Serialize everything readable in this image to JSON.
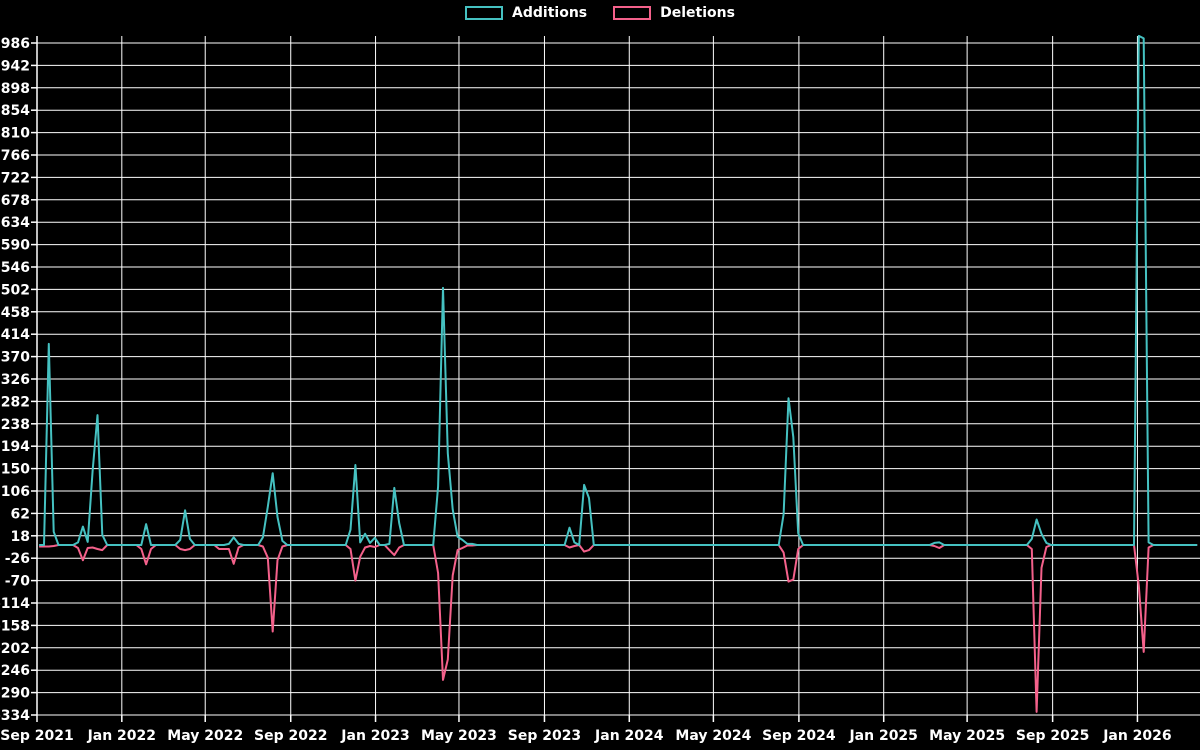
{
  "chart_data": {
    "type": "line",
    "title": "",
    "frequency": "weekly",
    "fill_value": 0,
    "legend": [
      {
        "label": "Additions",
        "color": "#45c1c1"
      },
      {
        "label": "Deletions",
        "color": "#f4618b"
      }
    ],
    "colors": {
      "background": "#000000",
      "grid": "#ffffff",
      "axis": "#ffffff",
      "text": "#ffffff",
      "additions": "#45c1c1",
      "deletions": "#f4618b"
    },
    "y_axis": {
      "tick_step": 44,
      "axis_max": 986,
      "axis_min": -334,
      "ticks": [
        986,
        942,
        898,
        854,
        810,
        766,
        722,
        678,
        634,
        590,
        546,
        502,
        458,
        414,
        370,
        326,
        282,
        238,
        194,
        150,
        106,
        62,
        18,
        -26,
        -70,
        -114,
        -158,
        -202,
        -246,
        -290,
        -334
      ]
    },
    "x_axis": {
      "start": "2021-09-01",
      "end": "2026-04-01",
      "ticks": [
        {
          "date": "2021-09-01",
          "label": "Sep 2021"
        },
        {
          "date": "2022-01-01",
          "label": "Jan 2022"
        },
        {
          "date": "2022-05-01",
          "label": "May 2022"
        },
        {
          "date": "2022-09-01",
          "label": "Sep 2022"
        },
        {
          "date": "2023-01-01",
          "label": "Jan 2023"
        },
        {
          "date": "2023-05-01",
          "label": "May 2023"
        },
        {
          "date": "2023-09-01",
          "label": "Sep 2023"
        },
        {
          "date": "2024-01-01",
          "label": "Jan 2024"
        },
        {
          "date": "2024-05-01",
          "label": "May 2024"
        },
        {
          "date": "2024-09-01",
          "label": "Sep 2024"
        },
        {
          "date": "2025-01-01",
          "label": "Jan 2025"
        },
        {
          "date": "2025-05-01",
          "label": "May 2025"
        },
        {
          "date": "2025-09-01",
          "label": "Sep 2025"
        },
        {
          "date": "2026-01-01",
          "label": "Jan 2026"
        }
      ]
    },
    "series_start": "2021-09-04",
    "series_end": "2026-03-28",
    "weeks_nonzero": [
      [
        "2021-09-04",
        0,
        -3
      ],
      [
        "2021-09-11",
        0,
        -3
      ],
      [
        "2021-09-18",
        395,
        -3
      ],
      [
        "2021-09-25",
        26,
        -2
      ],
      [
        "2021-10-30",
        5,
        -6
      ],
      [
        "2021-11-06",
        36,
        -30
      ],
      [
        "2021-11-13",
        6,
        -6
      ],
      [
        "2021-11-20",
        145,
        -5
      ],
      [
        "2021-11-27",
        255,
        -8
      ],
      [
        "2021-12-04",
        20,
        -10
      ],
      [
        "2022-01-29",
        0,
        -8
      ],
      [
        "2022-02-05",
        41,
        -38
      ],
      [
        "2022-02-12",
        0,
        -8
      ],
      [
        "2022-03-26",
        10,
        -8
      ],
      [
        "2022-04-02",
        68,
        -10
      ],
      [
        "2022-04-09",
        12,
        -8
      ],
      [
        "2022-05-21",
        0,
        -8
      ],
      [
        "2022-05-28",
        0,
        -8
      ],
      [
        "2022-06-04",
        2,
        -8
      ],
      [
        "2022-06-11",
        15,
        -37
      ],
      [
        "2022-06-18",
        2,
        -5
      ],
      [
        "2022-07-23",
        15,
        -3
      ],
      [
        "2022-07-30",
        75,
        -25
      ],
      [
        "2022-08-06",
        141,
        -170
      ],
      [
        "2022-08-13",
        55,
        -30
      ],
      [
        "2022-08-20",
        8,
        -3
      ],
      [
        "2022-11-26",
        30,
        -8
      ],
      [
        "2022-12-03",
        157,
        -70
      ],
      [
        "2022-12-10",
        5,
        -23
      ],
      [
        "2022-12-17",
        22,
        -5
      ],
      [
        "2022-12-24",
        4,
        -2
      ],
      [
        "2022-12-31",
        14,
        -4
      ],
      [
        "2023-01-21",
        2,
        -10
      ],
      [
        "2023-01-28",
        112,
        -20
      ],
      [
        "2023-02-04",
        43,
        -5
      ],
      [
        "2023-04-01",
        115,
        -55
      ],
      [
        "2023-04-08",
        505,
        -265
      ],
      [
        "2023-04-15",
        180,
        -225
      ],
      [
        "2023-04-22",
        70,
        -60
      ],
      [
        "2023-04-29",
        16,
        -10
      ],
      [
        "2023-05-06",
        10,
        -6
      ],
      [
        "2023-05-13",
        2,
        -1
      ],
      [
        "2023-05-20",
        2,
        -1
      ],
      [
        "2023-10-07",
        34,
        -5
      ],
      [
        "2023-10-14",
        5,
        -2
      ],
      [
        "2023-10-28",
        118,
        -13
      ],
      [
        "2023-11-04",
        92,
        -10
      ],
      [
        "2024-08-10",
        60,
        -15
      ],
      [
        "2024-08-17",
        288,
        -72
      ],
      [
        "2024-08-24",
        212,
        -68
      ],
      [
        "2024-08-31",
        23,
        -8
      ],
      [
        "2025-03-15",
        4,
        -2
      ],
      [
        "2025-03-22",
        5,
        -6
      ],
      [
        "2025-08-02",
        12,
        -8
      ],
      [
        "2025-08-09",
        50,
        -328
      ],
      [
        "2025-08-16",
        22,
        -45
      ],
      [
        "2025-08-23",
        4,
        -4
      ],
      [
        "2026-01-03",
        1000,
        -80
      ],
      [
        "2026-01-10",
        995,
        -210
      ],
      [
        "2026-01-17",
        5,
        -5
      ]
    ]
  }
}
